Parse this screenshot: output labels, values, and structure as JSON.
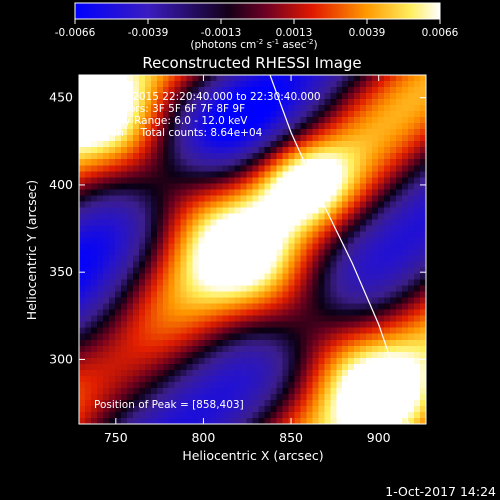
{
  "chart_data": {
    "type": "heatmap",
    "title": "Reconstructed RHESSI Image",
    "colorbar": {
      "ticks": [
        "-0.0066",
        "-0.0039",
        "-0.0013",
        "0.0013",
        "0.0039",
        "0.0066"
      ],
      "units_prefix": "(photons cm",
      "units_sup1": "-2",
      "units_mid": " s",
      "units_sup2": "-1",
      "units_mid2": " asec",
      "units_sup3": "-2",
      "units_suffix": ")",
      "range": [
        -0.0066,
        0.0066
      ],
      "colormap": [
        "#0000ff",
        "#3020b0",
        "#000000",
        "#8a0030",
        "#ff2a00",
        "#ffb000",
        "#ffffff"
      ]
    },
    "xlabel": "Heliocentric X (arcsec)",
    "ylabel": "Heliocentric Y (arcsec)",
    "xticks": [
      "750",
      "800",
      "850",
      "900"
    ],
    "yticks": [
      "300",
      "350",
      "400",
      "450"
    ],
    "xlim": [
      729,
      927
    ],
    "ylim": [
      263,
      463
    ],
    "info_lines": [
      "22-Apr-2015 22:20:40.000 to 22:30:40.000",
      "Detectors: 3F 5F 6F 7F 8F 9F",
      "Energy Range: 6.0 - 12.0 keV",
      "Clean     Total counts: 8.64e+04"
    ],
    "peak_label": "Position of Peak = [858,403]",
    "peak": [
      858,
      403
    ],
    "limb_curve": [
      [
        838,
        463
      ],
      [
        850,
        430
      ],
      [
        868,
        390
      ],
      [
        885,
        355
      ],
      [
        900,
        320
      ],
      [
        912,
        285
      ],
      [
        917,
        263
      ]
    ],
    "grid": false
  },
  "footer": {
    "date": "1-Oct-2017 14:24"
  }
}
